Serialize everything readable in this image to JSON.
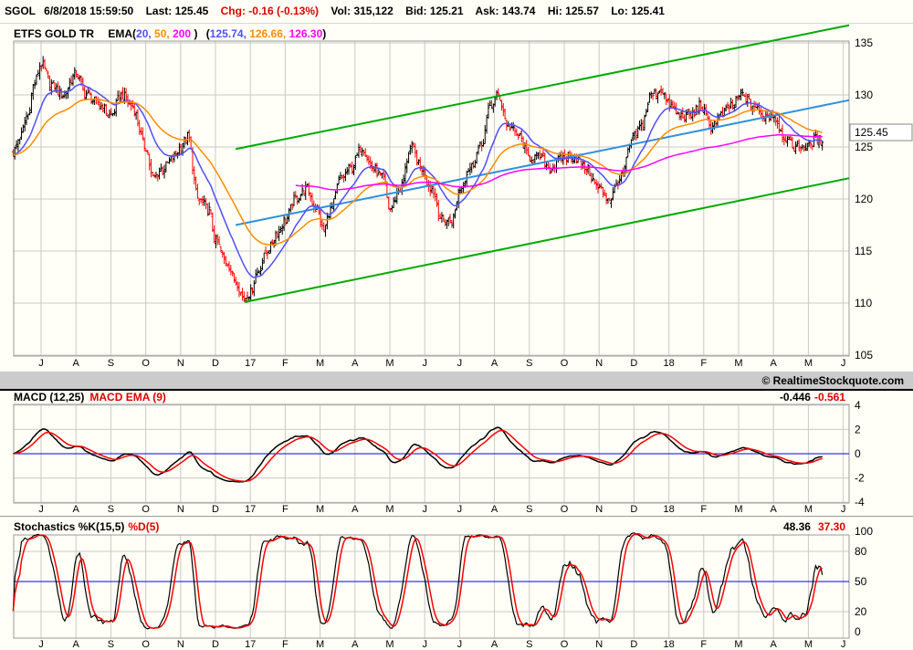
{
  "header": {
    "symbol": "SGOL",
    "datetime": "6/8/2018 15:59:50",
    "last": "Last: 125.45",
    "chg": "Chg: -0.16 (-0.13%)",
    "vol": "Vol: 315,122",
    "bid": "Bid: 125.21",
    "ask": "Ask: 143.74",
    "hi": "Hi: 125.57",
    "lo": "Lo: 125.41"
  },
  "legend": {
    "name": "ETFS GOLD TR",
    "ema_prefix": "EMA(",
    "p20": "20,",
    "p50": "50,",
    "p200": "200",
    "close_paren": ")",
    "open_paren2": "(",
    "v20": "125.74,",
    "v50": "126.66,",
    "v200": "126.30",
    "close_paren2": ")"
  },
  "last_price_label": "125.45",
  "copyright": "© RealtimeStockquote.com",
  "colors": {
    "bg": "#fffff7",
    "grid": "#c8c8c8",
    "ema20": "#4f4fff",
    "ema50": "#ff8c00",
    "ema200": "#ff00ff",
    "channel": "#00aa00",
    "regression": "#2f8fdf",
    "up": "#000000",
    "down": "#ff0000",
    "ref": "#0000ff"
  },
  "macd": {
    "title_black": "MACD (12,25)",
    "title_red": "MACD EMA (9)",
    "value_macd": "-0.446",
    "value_signal": "-0.561"
  },
  "stoch": {
    "title_black": "Stochastics %K(15,5)",
    "title_red": "%D(5)",
    "value_k": "48.36",
    "value_d": "37.30"
  },
  "chart_data": [
    {
      "type": "ohlc",
      "title": "ETFS GOLD TR",
      "ylim": [
        105,
        135
      ],
      "yticks": [
        "105",
        "110",
        "115",
        "120",
        "125",
        "130",
        "135"
      ],
      "x_unit": "months since 2016-06-01",
      "month_labels": [
        "J",
        "A",
        "S",
        "O",
        "N",
        "D",
        "17",
        "F",
        "M",
        "A",
        "M",
        "J",
        "J",
        "A",
        "S",
        "O",
        "N",
        "D",
        "18",
        "F",
        "M",
        "A",
        "M",
        "J"
      ],
      "close_path": [
        [
          0.2,
          124.5
        ],
        [
          0.4,
          126
        ],
        [
          0.6,
          128
        ],
        [
          0.8,
          131
        ],
        [
          1.0,
          133
        ],
        [
          1.3,
          131
        ],
        [
          1.6,
          130
        ],
        [
          2.0,
          132
        ],
        [
          2.3,
          130
        ],
        [
          2.7,
          129
        ],
        [
          3.0,
          128
        ],
        [
          3.3,
          130
        ],
        [
          3.6,
          129
        ],
        [
          4.0,
          125
        ],
        [
          4.2,
          122
        ],
        [
          4.5,
          123
        ],
        [
          4.8,
          124
        ],
        [
          5.0,
          125
        ],
        [
          5.2,
          126
        ],
        [
          5.5,
          120
        ],
        [
          5.8,
          119
        ],
        [
          6.0,
          116
        ],
        [
          6.3,
          114
        ],
        [
          6.6,
          112
        ],
        [
          6.8,
          110.5
        ],
        [
          7.0,
          111
        ],
        [
          7.2,
          113
        ],
        [
          7.5,
          115
        ],
        [
          7.8,
          117
        ],
        [
          8.0,
          118
        ],
        [
          8.3,
          120
        ],
        [
          8.6,
          121
        ],
        [
          8.9,
          119
        ],
        [
          9.1,
          117
        ],
        [
          9.3,
          119
        ],
        [
          9.6,
          122
        ],
        [
          9.9,
          123
        ],
        [
          10.2,
          125
        ],
        [
          10.5,
          123
        ],
        [
          10.8,
          122
        ],
        [
          11.0,
          119
        ],
        [
          11.3,
          121
        ],
        [
          11.6,
          125
        ],
        [
          11.9,
          123
        ],
        [
          12.2,
          121
        ],
        [
          12.5,
          118
        ],
        [
          12.8,
          118
        ],
        [
          13.0,
          121
        ],
        [
          13.3,
          123
        ],
        [
          13.6,
          125
        ],
        [
          13.9,
          129
        ],
        [
          14.1,
          130
        ],
        [
          14.4,
          127
        ],
        [
          14.7,
          126
        ],
        [
          15.0,
          124
        ],
        [
          15.3,
          124
        ],
        [
          15.6,
          123
        ],
        [
          16.0,
          124
        ],
        [
          16.3,
          124
        ],
        [
          16.6,
          123
        ],
        [
          17.0,
          121
        ],
        [
          17.3,
          120
        ],
        [
          17.6,
          122
        ],
        [
          18.0,
          126
        ],
        [
          18.2,
          127
        ],
        [
          18.5,
          130
        ],
        [
          18.8,
          130.5
        ],
        [
          19.0,
          129
        ],
        [
          19.3,
          128
        ],
        [
          19.6,
          128
        ],
        [
          19.9,
          129
        ],
        [
          20.2,
          127
        ],
        [
          20.5,
          128
        ],
        [
          20.8,
          129
        ],
        [
          21.1,
          130
        ],
        [
          21.4,
          129
        ],
        [
          21.7,
          128
        ],
        [
          22.0,
          128
        ],
        [
          22.3,
          126
        ],
        [
          22.6,
          125
        ],
        [
          23.0,
          125
        ],
        [
          23.2,
          125.8
        ],
        [
          23.4,
          125.45
        ]
      ],
      "last_close": 125.45,
      "channel_upper": [
        [
          6.58,
          124.8
        ],
        [
          24.17,
          136.7
        ]
      ],
      "channel_lower": [
        [
          6.84,
          110.1
        ],
        [
          24.17,
          122.0
        ]
      ],
      "regression": [
        [
          6.58,
          117.5
        ],
        [
          24.17,
          129.5
        ]
      ],
      "ema_periods": [
        20,
        50,
        200
      ]
    },
    {
      "type": "line",
      "title": "MACD (12,25) / MACD EMA (9)",
      "ylim": [
        -4,
        4
      ],
      "yticks": [
        "4",
        "2",
        "0",
        "-2",
        "-4"
      ],
      "reference_line": 0
    },
    {
      "type": "line",
      "title": "Stochastics %K(15,5) %D(5)",
      "ylim": [
        0,
        100
      ],
      "yticks": [
        "100",
        "80",
        "50",
        "20",
        "0"
      ],
      "reference_line": 50
    }
  ]
}
